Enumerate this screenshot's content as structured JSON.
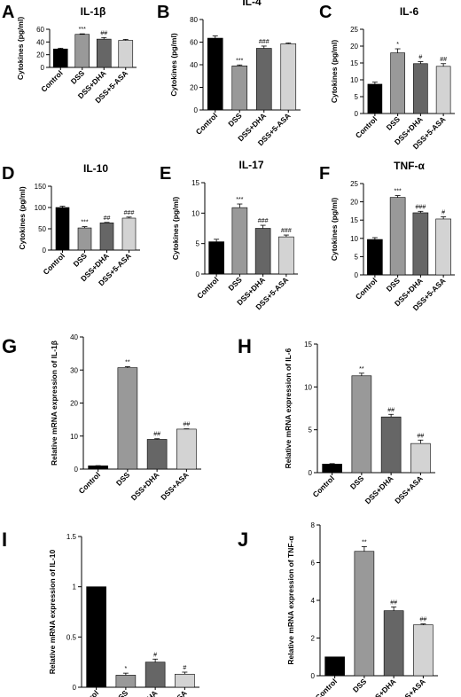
{
  "chart_data": [
    {
      "type": "bar",
      "panel": "A",
      "title": "IL-1β",
      "ylabel": "Cytokines (pg/ml)",
      "categories": [
        "Control",
        "DSS",
        "DSS+DHA",
        "DSS+5-ASA"
      ],
      "values": [
        29,
        52,
        44.5,
        42.5
      ],
      "errors": [
        1.2,
        0.8,
        2.5,
        1.5
      ],
      "annotations": [
        "",
        "***",
        "##",
        ""
      ],
      "ylim": [
        0,
        60
      ],
      "yticks": [
        0,
        20,
        40,
        60
      ],
      "colors": [
        "#000000",
        "#999999",
        "#666666",
        "#d3d3d3"
      ]
    },
    {
      "type": "bar",
      "panel": "B",
      "title": "IL-4",
      "ylabel": "Cytokines (pg/ml)",
      "categories": [
        "Control",
        "DSS",
        "DSS+DHA",
        "DSS+5-ASA"
      ],
      "values": [
        63.5,
        39,
        54.5,
        58.5
      ],
      "errors": [
        2,
        0.8,
        2,
        0.8
      ],
      "annotations": [
        "",
        "***",
        "###",
        ""
      ],
      "ylim": [
        0,
        80
      ],
      "yticks": [
        0,
        20,
        40,
        60,
        80
      ],
      "colors": [
        "#000000",
        "#999999",
        "#666666",
        "#d3d3d3"
      ]
    },
    {
      "type": "bar",
      "panel": "C",
      "title": "IL-6",
      "ylabel": "Cytokines (pg/ml)",
      "categories": [
        "Control",
        "DSS",
        "DSS+DHA",
        "DSS+5-ASA"
      ],
      "values": [
        8.7,
        18,
        14.8,
        14
      ],
      "errors": [
        0.6,
        1.2,
        0.6,
        0.8
      ],
      "annotations": [
        "",
        "*",
        "#",
        "##"
      ],
      "ylim": [
        0,
        25
      ],
      "yticks": [
        0,
        5,
        10,
        15,
        20,
        25
      ],
      "colors": [
        "#000000",
        "#999999",
        "#666666",
        "#d3d3d3"
      ]
    },
    {
      "type": "bar",
      "panel": "D",
      "title": "IL-10",
      "ylabel": "Cytokines (pg/ml)",
      "categories": [
        "Control",
        "DSS",
        "DSS+DHA",
        "DSS+5-ASA"
      ],
      "values": [
        100,
        52,
        64,
        75
      ],
      "errors": [
        3,
        3,
        1,
        2.5
      ],
      "annotations": [
        "",
        "***",
        "##",
        "###"
      ],
      "ylim": [
        0,
        150
      ],
      "yticks": [
        0,
        50,
        100,
        150
      ],
      "colors": [
        "#000000",
        "#999999",
        "#666666",
        "#d3d3d3"
      ]
    },
    {
      "type": "bar",
      "panel": "E",
      "title": "IL-17",
      "ylabel": "Cytokines (pg/ml)",
      "categories": [
        "Control",
        "DSS",
        "DSS+DHA",
        "DSS+5-ASA"
      ],
      "values": [
        5.3,
        10.9,
        7.5,
        6.1
      ],
      "errors": [
        0.4,
        0.6,
        0.5,
        0.3
      ],
      "annotations": [
        "",
        "***",
        "###",
        "###"
      ],
      "ylim": [
        0,
        15
      ],
      "yticks": [
        0,
        5,
        10,
        15
      ],
      "colors": [
        "#000000",
        "#999999",
        "#666666",
        "#d3d3d3"
      ]
    },
    {
      "type": "bar",
      "panel": "F",
      "title": "TNF-α",
      "ylabel": "Cytokines (pg/ml)",
      "categories": [
        "Control",
        "DSS",
        "DSS+DHA",
        "DSS+5-ASA"
      ],
      "values": [
        9.7,
        21.2,
        17,
        15.3
      ],
      "errors": [
        0.5,
        0.5,
        0.4,
        0.6
      ],
      "annotations": [
        "",
        "***",
        "###",
        "#"
      ],
      "ylim": [
        0,
        25
      ],
      "yticks": [
        0,
        5,
        10,
        15,
        20,
        25
      ],
      "colors": [
        "#000000",
        "#999999",
        "#666666",
        "#d3d3d3"
      ]
    },
    {
      "type": "bar",
      "panel": "G",
      "title": "",
      "ylabel": "Relative mRNA expression of IL-1β",
      "categories": [
        "Control",
        "DSS",
        "DSS+DHA",
        "DSS+ASA"
      ],
      "values": [
        1,
        30.7,
        9,
        12.1
      ],
      "errors": [
        0.05,
        0.3,
        0.2,
        0.1
      ],
      "annotations": [
        "",
        "**",
        "##",
        "##"
      ],
      "ylim": [
        0,
        40
      ],
      "yticks": [
        0,
        10,
        20,
        30,
        40
      ],
      "colors": [
        "#000000",
        "#999999",
        "#666666",
        "#d3d3d3"
      ]
    },
    {
      "type": "bar",
      "panel": "H",
      "title": "",
      "ylabel": "Relative mRNA expression of IL-6",
      "categories": [
        "Control",
        "DSS",
        "DSS+DHA",
        "DSS+ASA"
      ],
      "values": [
        1,
        11.3,
        6.5,
        3.4
      ],
      "errors": [
        0.05,
        0.3,
        0.3,
        0.4
      ],
      "annotations": [
        "",
        "**",
        "##",
        "##"
      ],
      "ylim": [
        0,
        15
      ],
      "yticks": [
        0,
        5,
        10,
        15
      ],
      "colors": [
        "#000000",
        "#999999",
        "#666666",
        "#d3d3d3"
      ]
    },
    {
      "type": "bar",
      "panel": "I",
      "title": "",
      "ylabel": "Relative mRNA expression of IL-10",
      "categories": [
        "Control",
        "DSS",
        "DSS+DHA",
        "DSS+ASA"
      ],
      "values": [
        1,
        0.12,
        0.25,
        0.13
      ],
      "errors": [
        0,
        0.02,
        0.03,
        0.02
      ],
      "annotations": [
        "",
        "*",
        "#",
        "#"
      ],
      "ylim": [
        0,
        1.5
      ],
      "yticks": [
        0,
        0.5,
        1,
        1.5
      ],
      "colors": [
        "#000000",
        "#999999",
        "#666666",
        "#d3d3d3"
      ]
    },
    {
      "type": "bar",
      "panel": "J",
      "title": "",
      "ylabel": "Relative mRNA expression of TNF-α",
      "categories": [
        "Control",
        "DSS",
        "DSS+DHA",
        "DSS+ASA"
      ],
      "values": [
        1,
        6.6,
        3.45,
        2.7
      ],
      "errors": [
        0,
        0.25,
        0.2,
        0.05
      ],
      "annotations": [
        "",
        "**",
        "##",
        "##"
      ],
      "ylim": [
        0,
        8
      ],
      "yticks": [
        0,
        2,
        4,
        6,
        8
      ],
      "colors": [
        "#000000",
        "#999999",
        "#666666",
        "#d3d3d3"
      ]
    }
  ]
}
